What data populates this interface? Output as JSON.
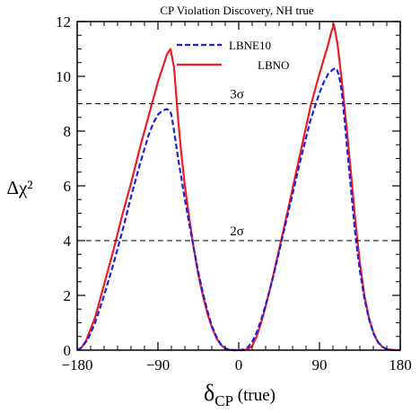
{
  "chart_data": {
    "type": "line",
    "title": "CP Violation Discovery, NH true",
    "ylabel": "Δχ²",
    "xlabel_main": "δ",
    "xlabel_sub": "CP",
    "xlabel_rest": " (true)",
    "xlim": [
      -180,
      180
    ],
    "ylim": [
      0,
      12
    ],
    "xticks": [
      -180,
      -90,
      0,
      90,
      180
    ],
    "xtick_labels": [
      "−180",
      "−90",
      "0",
      "90",
      "180"
    ],
    "yticks": [
      0,
      2,
      4,
      6,
      8,
      10,
      12
    ],
    "ytick_labels": [
      "0",
      "2",
      "4",
      "6",
      "8",
      "10",
      "12"
    ],
    "grid": false,
    "legend_position": "top-center",
    "reference_lines": [
      {
        "y": 9,
        "label": "3σ"
      },
      {
        "y": 4,
        "label": "2σ"
      }
    ],
    "series": [
      {
        "name": "LBNE10",
        "color": "#1f1fdf",
        "style": "dashed",
        "x": [
          -180,
          -175,
          -168,
          -160,
          -150,
          -140,
          -130,
          -120,
          -110,
          -100,
          -95,
          -90,
          -85,
          -80,
          -77,
          -75,
          -72,
          -68,
          -64,
          -60,
          -55,
          -50,
          -45,
          -40,
          -35,
          -30,
          -25,
          -20,
          -15,
          -10,
          -5,
          0,
          5,
          10,
          15,
          20,
          25,
          30,
          35,
          40,
          50,
          60,
          70,
          80,
          90,
          95,
          100,
          105,
          108,
          110,
          112,
          115,
          118,
          121,
          125,
          130,
          135,
          140,
          145,
          150,
          155,
          160,
          165,
          170,
          175,
          180
        ],
        "y": [
          0,
          0.1,
          0.4,
          1.0,
          2.0,
          3.1,
          4.3,
          5.6,
          6.8,
          7.9,
          8.3,
          8.6,
          8.75,
          8.8,
          8.75,
          8.6,
          8.0,
          7.1,
          6.3,
          5.5,
          4.6,
          3.7,
          2.85,
          2.1,
          1.45,
          0.9,
          0.5,
          0.22,
          0.07,
          0.01,
          0,
          0,
          0.02,
          0.1,
          0.3,
          0.65,
          1.1,
          1.65,
          2.25,
          2.9,
          4.3,
          5.7,
          7.1,
          8.4,
          9.4,
          9.8,
          10.1,
          10.25,
          10.3,
          10.2,
          10.0,
          9.4,
          8.4,
          7.3,
          5.9,
          4.2,
          2.9,
          1.9,
          1.15,
          0.62,
          0.3,
          0.12,
          0.04,
          0.01,
          0,
          0
        ]
      },
      {
        "name": "LBNO",
        "color": "#ee1c25",
        "style": "solid",
        "x": [
          -180,
          -175,
          -170,
          -160,
          -150,
          -140,
          -130,
          -120,
          -110,
          -100,
          -90,
          -80,
          -76,
          -72,
          -68,
          -64,
          -60,
          -55,
          -50,
          -45,
          -40,
          -35,
          -30,
          -25,
          -20,
          -15,
          -10,
          -5,
          0,
          5,
          10,
          15,
          20,
          25,
          30,
          35,
          40,
          50,
          60,
          70,
          80,
          90,
          100,
          103,
          106,
          110,
          115,
          120,
          125,
          130,
          135,
          140,
          145,
          150,
          155,
          160,
          165,
          170,
          175,
          180
        ],
        "y": [
          0,
          0.1,
          0.35,
          1.2,
          2.4,
          3.6,
          4.9,
          6.1,
          7.4,
          8.6,
          9.8,
          10.8,
          11.0,
          10.3,
          8.6,
          7.2,
          6.0,
          4.8,
          3.7,
          2.75,
          2.0,
          1.35,
          0.85,
          0.45,
          0.2,
          0.06,
          0.01,
          0,
          0,
          0,
          0.03,
          0.15,
          0.5,
          1.0,
          1.6,
          2.25,
          2.95,
          4.4,
          5.9,
          7.4,
          8.9,
          10.1,
          11.2,
          11.6,
          11.9,
          11.2,
          9.8,
          8.2,
          6.5,
          4.7,
          3.2,
          2.0,
          1.2,
          0.65,
          0.3,
          0.12,
          0.04,
          0.01,
          0,
          0
        ]
      }
    ]
  }
}
